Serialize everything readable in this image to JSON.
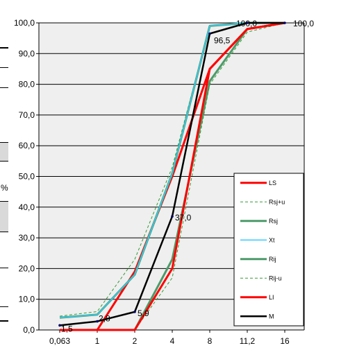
{
  "chart_data": {
    "type": "line",
    "title": "",
    "xlabel": "",
    "ylabel": "",
    "categories": [
      "0,063",
      "1",
      "2",
      "4",
      "8",
      "11,2",
      "16"
    ],
    "ylim": [
      0,
      100
    ],
    "y_ticks": [
      "0,0",
      "10,0",
      "20,0",
      "30,0",
      "40,0",
      "50,0",
      "60,0",
      "70,0",
      "80,0",
      "90,0",
      "100,0"
    ],
    "grid": true,
    "legend_position": "bottom-right",
    "side_label": "%",
    "series": [
      {
        "name": "LS",
        "color": "#ff0000",
        "style": "solid",
        "width": 3,
        "values": [
          0,
          0,
          19,
          50,
          85,
          98,
          100
        ]
      },
      {
        "name": "Rsj+u",
        "color": "#339933",
        "style": "dashed",
        "width": 1,
        "values": [
          4.5,
          6,
          23,
          53,
          99,
          100,
          100
        ]
      },
      {
        "name": "Rsj",
        "color": "#4c9a6a",
        "style": "solid",
        "width": 3,
        "values": [
          4,
          5,
          18,
          51,
          99,
          100,
          100
        ]
      },
      {
        "name": "Xt",
        "color": "#33ccff",
        "style": "solid",
        "width": 1.5,
        "values": [
          4,
          5,
          18,
          51,
          99,
          100,
          100
        ]
      },
      {
        "name": "Rij",
        "color": "#4c9a6a",
        "style": "solid",
        "width": 3,
        "values": [
          0,
          0,
          0,
          23,
          81,
          98,
          100
        ]
      },
      {
        "name": "Rij-u",
        "color": "#339933",
        "style": "dashed",
        "width": 1,
        "values": [
          0,
          0,
          0,
          17,
          80,
          97,
          100
        ]
      },
      {
        "name": "LI",
        "color": "#ff0000",
        "style": "solid",
        "width": 3,
        "values": [
          0,
          0,
          0,
          20,
          85,
          98,
          100
        ]
      },
      {
        "name": "M",
        "color": "#000000",
        "style": "solid",
        "width": 2.5,
        "values": [
          1.5,
          2.8,
          5.9,
          37.0,
          96.5,
          100.0,
          100.0
        ]
      }
    ],
    "data_labels": [
      "1,5",
      "2,8",
      "5,9",
      "37,0",
      "96,5",
      "100,0",
      "100,0"
    ]
  }
}
